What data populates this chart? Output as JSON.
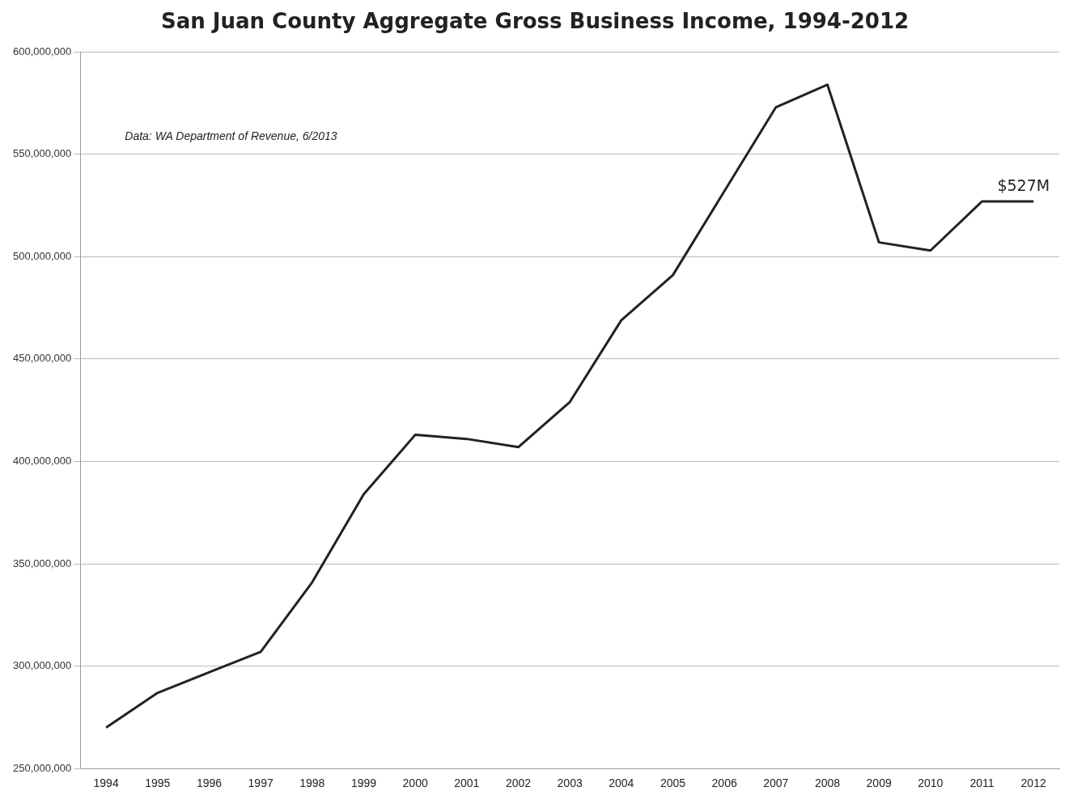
{
  "chart_data": {
    "type": "line",
    "title": "San Juan County Aggregate Gross Business Income, 1994-2012",
    "categories": [
      "1994",
      "1995",
      "1996",
      "1997",
      "1998",
      "1999",
      "2000",
      "2001",
      "2002",
      "2003",
      "2004",
      "2005",
      "2006",
      "2007",
      "2008",
      "2009",
      "2010",
      "2011",
      "2012"
    ],
    "series": [
      {
        "color": "#222222",
        "values": [
          270000000,
          287000000,
          297000000,
          307000000,
          341000000,
          384000000,
          413000000,
          411000000,
          407000000,
          429000000,
          469000000,
          491000000,
          532000000,
          573000000,
          584000000,
          507000000,
          503000000,
          527000000,
          527000000
        ]
      }
    ],
    "ylim": [
      250000000,
      600000000
    ],
    "yticks": [
      {
        "value": 250000000,
        "label": "250,000,000"
      },
      {
        "value": 300000000,
        "label": "300,000,000"
      },
      {
        "value": 350000000,
        "label": "350,000,000"
      },
      {
        "value": 400000000,
        "label": "400,000,000"
      },
      {
        "value": 450000000,
        "label": "450,000,000"
      },
      {
        "value": 500000000,
        "label": "500,000,000"
      },
      {
        "value": 550000000,
        "label": "550,000,000"
      },
      {
        "value": 600000000,
        "label": "600,000,000"
      }
    ],
    "grid": "y",
    "legend": false,
    "marker": "none",
    "line_style": "solid",
    "annotations": [
      "Data: WA Department of Revenue, 6/2013",
      {
        "text": "$527M",
        "x": "2012",
        "y": 527000000
      }
    ]
  }
}
